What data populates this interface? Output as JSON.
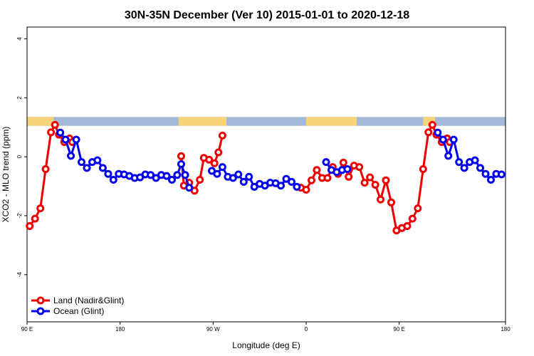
{
  "chart_data": {
    "type": "line",
    "title": "30N-35N December (Ver 10)   2015-01-01 to 2020-12-18",
    "xlabel": "Longitude (deg E)",
    "ylabel": "XCO2 - MLO trend (ppm)",
    "xlim": [
      90,
      450
    ],
    "ylim": [
      -5.6,
      4.4
    ],
    "x_ticks": [
      {
        "value": 90,
        "label": "90 E"
      },
      {
        "value": 160,
        "label": "180"
      },
      {
        "value": 230,
        "label": "90 W"
      },
      {
        "value": 300,
        "label": "0"
      },
      {
        "value": 370,
        "label": "90 E"
      },
      {
        "value": 450,
        "label": "180"
      }
    ],
    "y_ticks": [
      {
        "value": 4,
        "label": "4"
      },
      {
        "value": 2,
        "label": "2"
      },
      {
        "value": 0,
        "label": "0"
      },
      {
        "value": -2,
        "label": "-2"
      },
      {
        "value": -4,
        "label": "-4"
      }
    ],
    "land_sea_band": {
      "y_range": [
        1.05,
        1.35
      ],
      "ocean_color": "#a4b8d8",
      "land_color": "#f8d478",
      "land_segments": [
        [
          90,
          110
        ],
        [
          204,
          240
        ],
        [
          300,
          338
        ],
        [
          388,
          397
        ]
      ]
    },
    "series": [
      {
        "name": "Land (Nadir&Glint)",
        "color": "#ee0000",
        "segments": [
          [
            [
              92,
              -2.35
            ],
            [
              96,
              -2.1
            ],
            [
              100,
              -1.75
            ],
            [
              104,
              -0.42
            ],
            [
              108,
              0.83
            ],
            [
              111,
              1.08
            ],
            [
              114,
              0.75
            ],
            [
              118,
              0.5
            ],
            [
              122,
              0.62
            ],
            [
              124,
              0.5
            ]
          ],
          [
            [
              206,
              0.02
            ],
            [
              208,
              -0.98
            ],
            [
              212,
              -0.88
            ],
            [
              216,
              -1.15
            ],
            [
              220,
              -0.78
            ],
            [
              223,
              -0.04
            ],
            [
              227,
              -0.1
            ],
            [
              231,
              -0.22
            ],
            [
              234,
              0.15
            ],
            [
              237,
              0.72
            ]
          ],
          [
            [
              296,
              -1.05
            ],
            [
              300,
              -1.12
            ],
            [
              304,
              -0.8
            ],
            [
              308,
              -0.45
            ],
            [
              312,
              -0.72
            ],
            [
              316,
              -0.72
            ],
            [
              320,
              -0.35
            ],
            [
              324,
              -0.58
            ],
            [
              328,
              -0.2
            ],
            [
              332,
              -0.68
            ],
            [
              336,
              -0.3
            ],
            [
              340,
              -0.35
            ],
            [
              344,
              -0.88
            ],
            [
              348,
              -0.7
            ],
            [
              352,
              -0.95
            ],
            [
              356,
              -1.45
            ],
            [
              360,
              -0.8
            ],
            [
              364,
              -1.55
            ],
            [
              368,
              -2.5
            ],
            [
              372,
              -2.42
            ],
            [
              376,
              -2.35
            ],
            [
              380,
              -2.1
            ],
            [
              384,
              -1.75
            ],
            [
              388,
              -0.42
            ],
            [
              392,
              0.83
            ],
            [
              395,
              1.08
            ],
            [
              398,
              0.75
            ],
            [
              402,
              0.5
            ],
            [
              406,
              0.62
            ],
            [
              408,
              0.5
            ]
          ]
        ]
      },
      {
        "name": "Ocean (Glint)",
        "color": "#0000ee",
        "segments": [
          [
            [
              115,
              0.82
            ],
            [
              119,
              0.58
            ],
            [
              123,
              0.03
            ],
            [
              127,
              0.58
            ],
            [
              131,
              -0.18
            ],
            [
              135,
              -0.38
            ],
            [
              139,
              -0.18
            ],
            [
              143,
              -0.12
            ],
            [
              147,
              -0.38
            ],
            [
              151,
              -0.58
            ],
            [
              155,
              -0.78
            ],
            [
              159,
              -0.58
            ],
            [
              163,
              -0.6
            ],
            [
              167,
              -0.65
            ],
            [
              171,
              -0.72
            ],
            [
              175,
              -0.7
            ],
            [
              179,
              -0.6
            ],
            [
              183,
              -0.62
            ],
            [
              187,
              -0.72
            ],
            [
              191,
              -0.62
            ],
            [
              195,
              -0.65
            ],
            [
              199,
              -0.78
            ],
            [
              203,
              -0.62
            ],
            [
              206,
              -0.25
            ],
            [
              209,
              -0.62
            ],
            [
              212,
              -1.05
            ]
          ],
          [
            [
              229,
              -0.48
            ],
            [
              233,
              -0.58
            ],
            [
              237,
              -0.35
            ],
            [
              241,
              -0.68
            ],
            [
              245,
              -0.72
            ],
            [
              249,
              -0.6
            ],
            [
              253,
              -0.85
            ],
            [
              257,
              -0.68
            ],
            [
              261,
              -1.02
            ],
            [
              265,
              -0.92
            ],
            [
              269,
              -0.98
            ],
            [
              273,
              -0.88
            ],
            [
              277,
              -0.9
            ],
            [
              281,
              -0.98
            ],
            [
              285,
              -0.75
            ],
            [
              289,
              -0.85
            ],
            [
              293,
              -1.02
            ]
          ],
          [
            [
              315,
              -0.18
            ],
            [
              319,
              -0.45
            ],
            [
              323,
              -0.52
            ],
            [
              327,
              -0.45
            ],
            [
              331,
              -0.42
            ]
          ],
          [
            [
              399,
              0.82
            ],
            [
              403,
              0.58
            ],
            [
              407,
              0.03
            ],
            [
              411,
              0.58
            ],
            [
              415,
              -0.18
            ],
            [
              419,
              -0.38
            ],
            [
              423,
              -0.18
            ],
            [
              427,
              -0.12
            ],
            [
              431,
              -0.38
            ],
            [
              435,
              -0.58
            ],
            [
              439,
              -0.78
            ],
            [
              443,
              -0.58
            ],
            [
              447,
              -0.6
            ]
          ]
        ]
      }
    ],
    "legend": {
      "position": "bottom-left",
      "entries": [
        "Land (Nadir&Glint)",
        "Ocean (Glint)"
      ]
    }
  }
}
